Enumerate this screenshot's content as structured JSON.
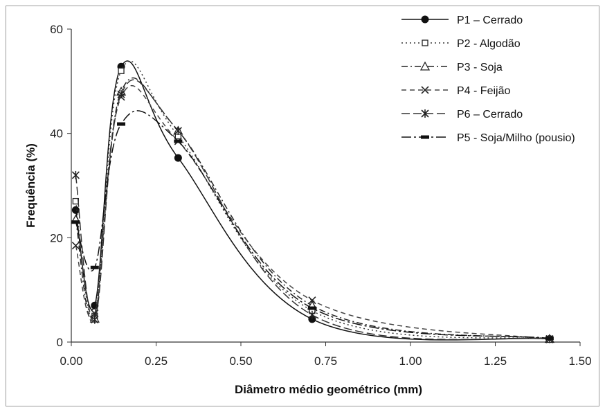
{
  "chart_data": {
    "type": "line",
    "xlabel": "Diâmetro médio geométrico (mm)",
    "ylabel": "Frequência (%)",
    "xlim": [
      0,
      1.5
    ],
    "ylim": [
      0,
      60
    ],
    "x_ticks": [
      "0.00",
      "0.25",
      "0.50",
      "0.75",
      "1.00",
      "1.25",
      "1.50"
    ],
    "y_ticks": [
      "0",
      "20",
      "40",
      "60"
    ],
    "grid": false,
    "legend_position": "top-right",
    "x": [
      0.013,
      0.069,
      0.147,
      0.315,
      0.71,
      1.41
    ],
    "series": [
      {
        "name": "P1 – Cerrado",
        "values": [
          25.3,
          7.0,
          52.8,
          35.3,
          4.4,
          0.6
        ],
        "marker": "filled-circle",
        "dash": "solid"
      },
      {
        "name": "P2 - Algodão",
        "values": [
          27.0,
          5.0,
          52.0,
          39.5,
          6.0,
          0.5
        ],
        "marker": "open-square",
        "dash": "dotted"
      },
      {
        "name": "P3 - Soja",
        "values": [
          23.5,
          4.5,
          48.0,
          40.5,
          7.0,
          0.6
        ],
        "marker": "open-triangle",
        "dash": "dash-dot"
      },
      {
        "name": "P4 - Feijão",
        "values": [
          18.5,
          5.5,
          47.0,
          38.5,
          8.0,
          0.5
        ],
        "marker": "x",
        "dash": "dashed"
      },
      {
        "name": "P6 – Cerrado",
        "values": [
          32.0,
          4.3,
          47.5,
          40.5,
          5.2,
          0.6
        ],
        "marker": "star",
        "dash": "long-dash"
      },
      {
        "name": "P5 - Soja/Milho (pousio)",
        "values": [
          23.0,
          14.3,
          41.8,
          38.5,
          6.5,
          0.7
        ],
        "marker": "filled-dash",
        "dash": "long-dash-dot"
      }
    ]
  }
}
